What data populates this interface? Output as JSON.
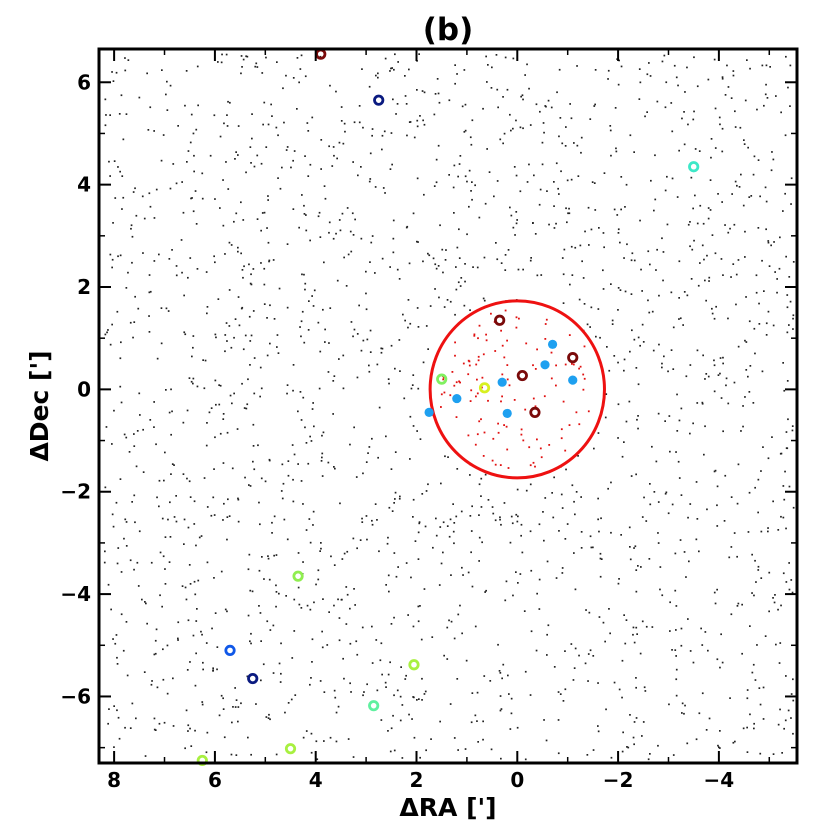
{
  "chart_data": {
    "type": "scatter",
    "title": "(b)",
    "xlabel": "ΔRA [']",
    "ylabel": "ΔDec [']",
    "xlim": [
      8.3,
      -5.55
    ],
    "ylim": [
      -7.3,
      6.65
    ],
    "x_inverted": true,
    "xticks": [
      8,
      6,
      4,
      2,
      0,
      -2,
      -4
    ],
    "yticks": [
      6,
      4,
      2,
      0,
      -2,
      -4,
      -6
    ],
    "xtick_labels": [
      "8",
      "6",
      "4",
      "2",
      "0",
      "−2",
      "−4"
    ],
    "ytick_labels": [
      "6",
      "4",
      "2",
      "0",
      "−2",
      "−4",
      "−6"
    ],
    "grid": false,
    "circle": {
      "center": [
        0.0,
        0.0
      ],
      "radius": 1.73,
      "color": "#ee1111"
    },
    "field_dot_color": "#222222",
    "cluster_dot_color": "#e01010",
    "filled_markers": {
      "color": "#1ea0f0",
      "points": [
        [
          1.75,
          -0.45
        ],
        [
          1.2,
          -0.18
        ],
        [
          0.3,
          0.14
        ],
        [
          0.2,
          -0.47
        ],
        [
          -0.55,
          0.48
        ],
        [
          -0.7,
          0.88
        ],
        [
          -1.1,
          0.18
        ]
      ]
    },
    "ring_markers": [
      {
        "x": 3.9,
        "y": 6.55,
        "color": "#7a0a0a"
      },
      {
        "x": 2.75,
        "y": 5.65,
        "color": "#0a1a80"
      },
      {
        "x": -3.5,
        "y": 4.35,
        "color": "#3de8c8"
      },
      {
        "x": 0.35,
        "y": 1.35,
        "color": "#7a0a0a"
      },
      {
        "x": -1.1,
        "y": 0.62,
        "color": "#7a0a0a"
      },
      {
        "x": -0.1,
        "y": 0.27,
        "color": "#7a0a0a"
      },
      {
        "x": -0.35,
        "y": -0.45,
        "color": "#7a0a0a"
      },
      {
        "x": 1.5,
        "y": 0.2,
        "color": "#80f060"
      },
      {
        "x": 0.65,
        "y": 0.03,
        "color": "#d8f020"
      },
      {
        "x": 4.35,
        "y": -3.65,
        "color": "#90ee50"
      },
      {
        "x": 5.7,
        "y": -5.1,
        "color": "#1058e8"
      },
      {
        "x": 5.25,
        "y": -5.65,
        "color": "#0a1a80"
      },
      {
        "x": 2.05,
        "y": -5.38,
        "color": "#a8f040"
      },
      {
        "x": 2.85,
        "y": -6.18,
        "color": "#60f0a0"
      },
      {
        "x": 4.5,
        "y": -7.02,
        "color": "#a8f040"
      },
      {
        "x": 6.25,
        "y": -7.25,
        "color": "#a8f040"
      }
    ]
  }
}
